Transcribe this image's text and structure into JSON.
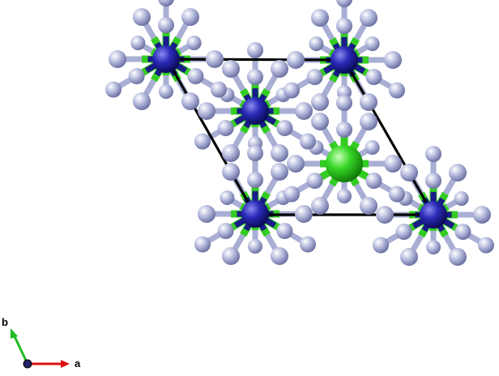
{
  "structure": {
    "colors": {
      "background": "#ffffff",
      "cell_edge": "#000000",
      "blue_atom": "#2222aa",
      "green_atom": "#33cc22",
      "ligand_atom": "#a8aed4",
      "bond_blue": "#1a1a8a",
      "bond_green": "#33cc22",
      "bond_ligand": "#a8aed4"
    },
    "legend": {
      "a_label": "a",
      "b_label": "b",
      "a_color": "#dd1111",
      "b_color": "#22bb22",
      "origin_color": "#222266"
    }
  }
}
